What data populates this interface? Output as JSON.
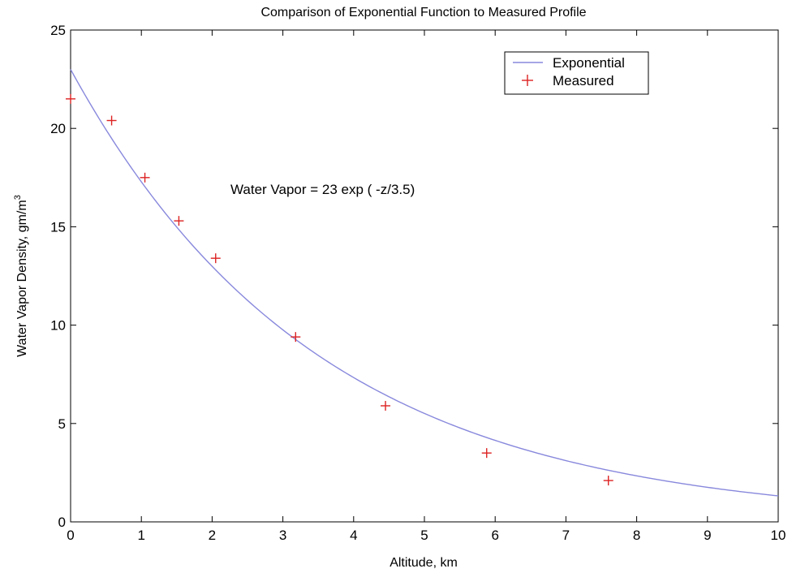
{
  "chart_data": {
    "type": "line",
    "title": "Comparison of Exponential Function to Measured Profile",
    "xlabel": "Altitude, km",
    "ylabel": "Water Vapor Density, gm/m",
    "ylabel_superscript": "3",
    "xlim": [
      0,
      10
    ],
    "ylim": [
      0,
      25
    ],
    "xticks": [
      "0",
      "1",
      "2",
      "3",
      "4",
      "5",
      "6",
      "7",
      "8",
      "9",
      "10"
    ],
    "yticks": [
      "0",
      "5",
      "10",
      "15",
      "20",
      "25"
    ],
    "grid": false,
    "legend_position": "top-right",
    "annotation": "Water Vapor = 23 exp ( -z/3.5)",
    "series": [
      {
        "name": "Exponential",
        "style": "line",
        "color": "#8888dd",
        "function": "23*exp(-z/3.5)",
        "x": [
          0,
          0.5,
          1,
          1.5,
          2,
          2.5,
          3,
          3.5,
          4,
          4.5,
          5,
          5.5,
          6,
          6.5,
          7,
          7.5,
          8,
          8.5,
          9,
          9.5,
          10
        ],
        "values": [
          23.0,
          19.94,
          17.28,
          14.98,
          12.99,
          11.26,
          9.76,
          8.46,
          7.34,
          6.36,
          5.51,
          4.78,
          4.14,
          3.59,
          3.11,
          2.7,
          2.34,
          2.03,
          1.76,
          1.52,
          1.32
        ]
      },
      {
        "name": "Measured",
        "style": "marker-plus",
        "color": "#dd2222",
        "x": [
          0.0,
          0.58,
          1.05,
          1.53,
          2.05,
          3.18,
          4.45,
          5.88,
          7.6
        ],
        "values": [
          21.5,
          20.4,
          17.5,
          15.3,
          13.4,
          9.4,
          5.9,
          3.5,
          2.1
        ]
      }
    ]
  }
}
